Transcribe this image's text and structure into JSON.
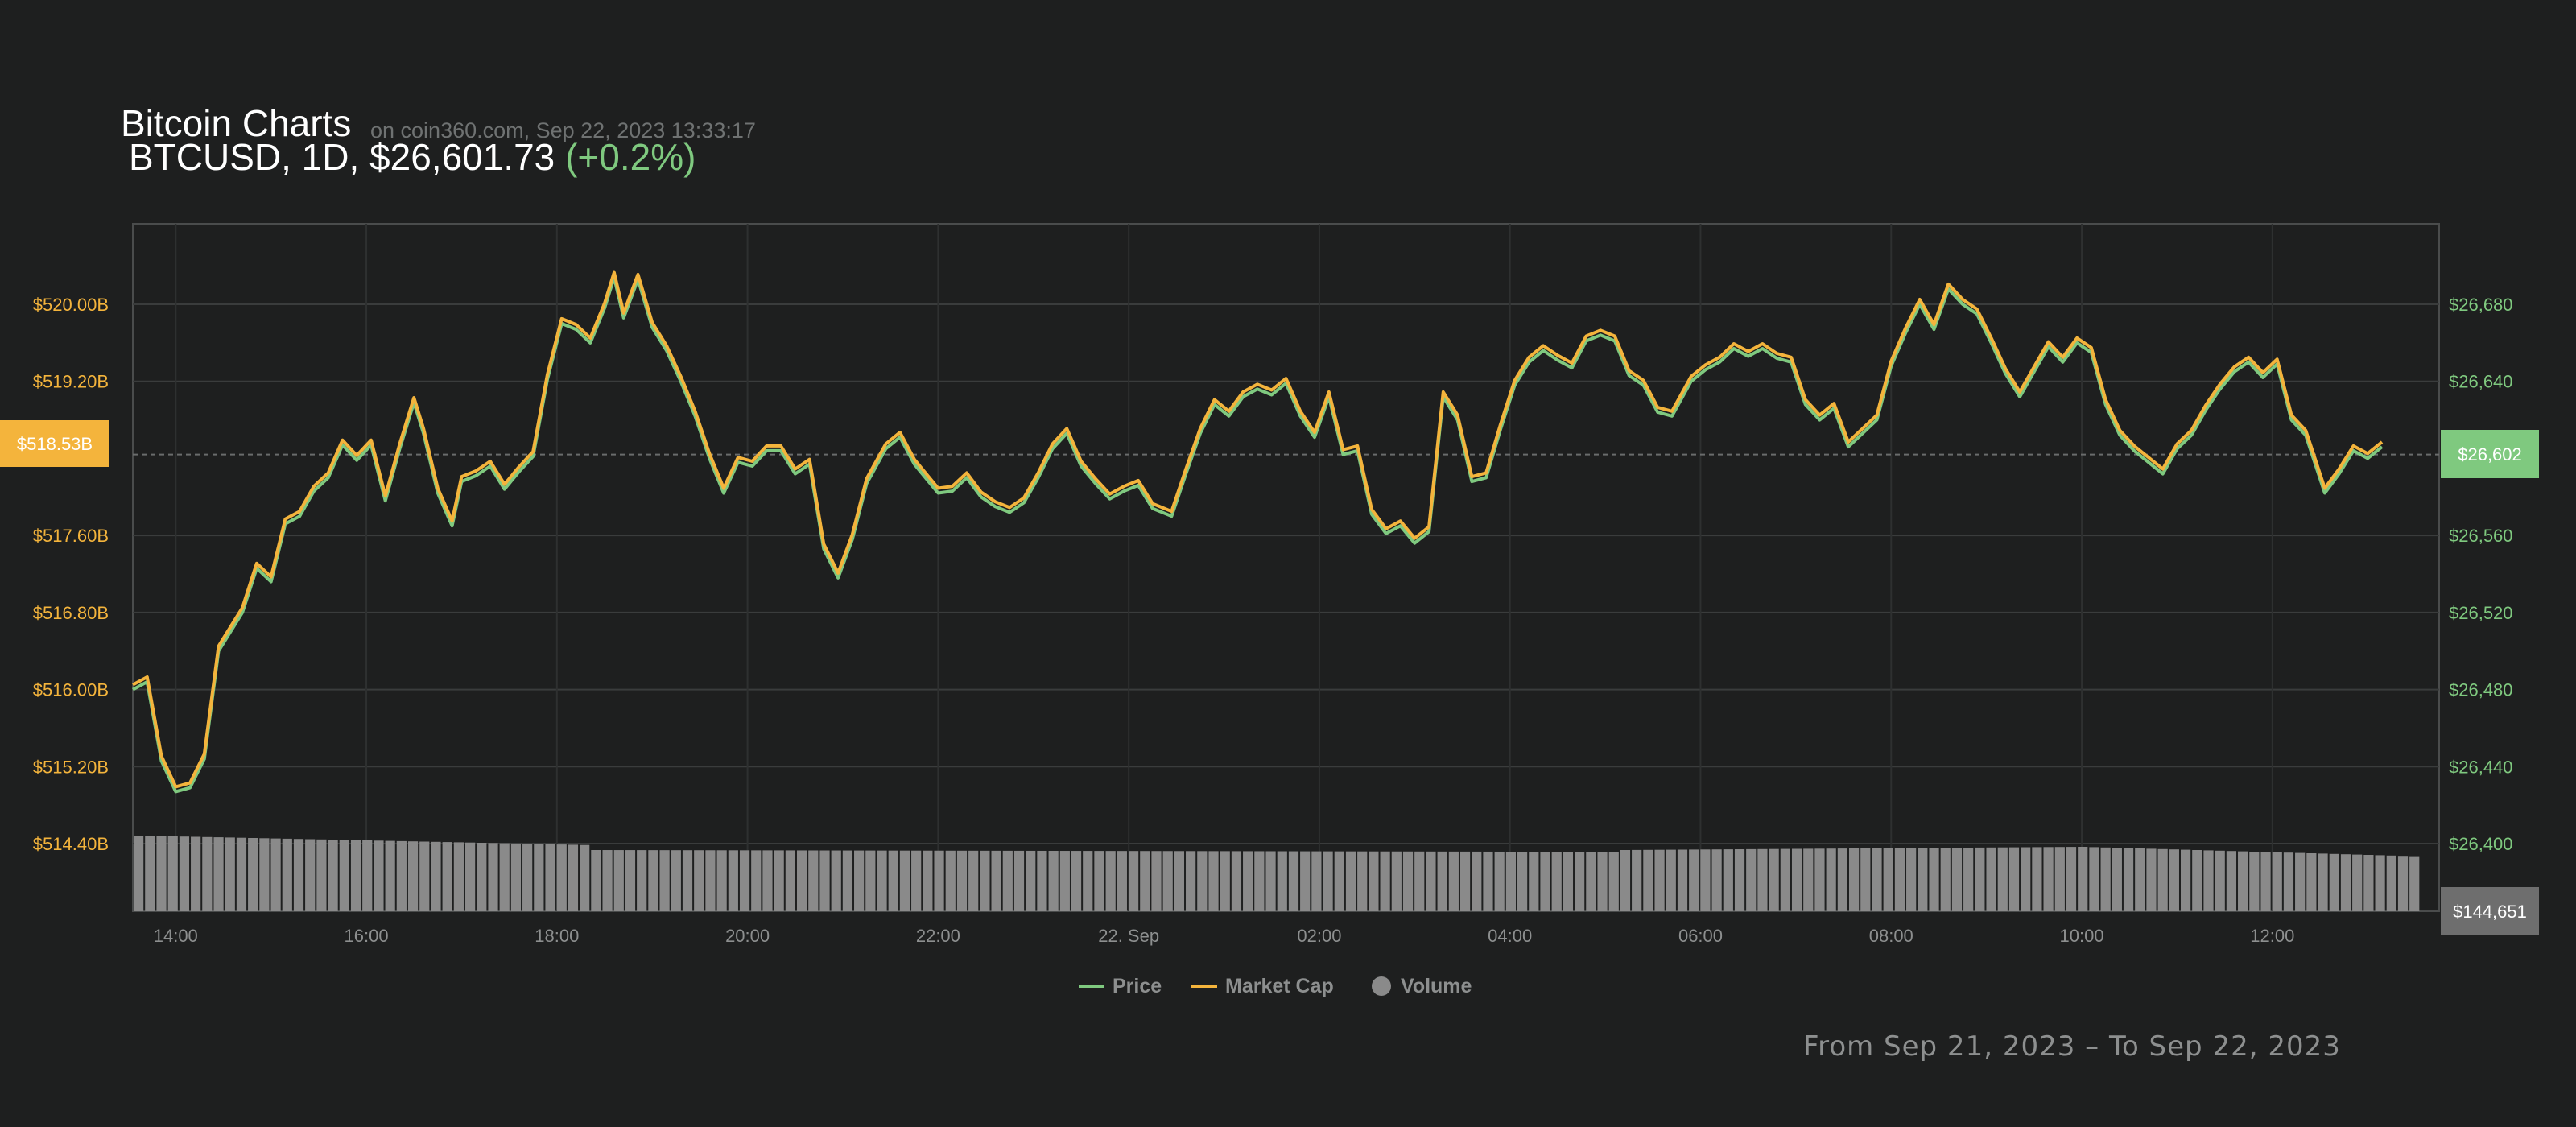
{
  "header": {
    "title": "Bitcoin Charts",
    "subtitle": "on coin360.com, Sep 22, 2023 13:33:17",
    "symbol_line": "BTCUSD, 1D, $26,601.73",
    "change": "(+0.2%)"
  },
  "footer": {
    "date_range": "From Sep 21, 2023 – To Sep 22, 2023"
  },
  "colors": {
    "background": "#1e1f1f",
    "price": "#7fc97f",
    "market_cap": "#f4b43c",
    "volume": "#8a8a8a",
    "grid": "#3a3c3c"
  },
  "chart_data": {
    "type": "line",
    "title": "BTCUSD, 1D",
    "x_tick_labels": [
      "14:00",
      "16:00",
      "18:00",
      "20:00",
      "22:00",
      "22. Sep",
      "02:00",
      "04:00",
      "06:00",
      "08:00",
      "10:00",
      "12:00"
    ],
    "x_ticks_hours": [
      14,
      16,
      18,
      20,
      22,
      24,
      26,
      28,
      30,
      32,
      34,
      36
    ],
    "x_range_hours": [
      13.55,
      37.75
    ],
    "y_left": {
      "label": "Market Cap",
      "ticks": [
        "$514.40B",
        "$515.20B",
        "$516.00B",
        "$516.80B",
        "$517.60B",
        "$518.53B",
        "$519.20B",
        "$520.00B"
      ],
      "range": [
        514.4,
        520.0
      ],
      "unit": "B USD"
    },
    "y_right": {
      "label": "Price",
      "ticks": [
        "$26,400",
        "$26,440",
        "$26,480",
        "$26,520",
        "$26,560",
        "$26,602",
        "$26,640",
        "$26,680"
      ],
      "range": [
        26400,
        26680
      ],
      "unit": "USD"
    },
    "current_market_cap_label": "$518.53B",
    "current_price_label": "$26,602",
    "current_volume_label": "$144,651",
    "legend": [
      {
        "name": "Price",
        "marker": "line"
      },
      {
        "name": "Market Cap",
        "marker": "line"
      },
      {
        "name": "Volume",
        "marker": "circle"
      }
    ],
    "legend_position": "bottom-center",
    "grid": true,
    "series": [
      {
        "name": "Price",
        "axis": "right",
        "points": [
          [
            13.55,
            26480
          ],
          [
            13.7,
            26484
          ],
          [
            13.85,
            26443
          ],
          [
            14.0,
            26427
          ],
          [
            14.15,
            26429
          ],
          [
            14.3,
            26444
          ],
          [
            14.45,
            26500
          ],
          [
            14.7,
            26520
          ],
          [
            14.85,
            26543
          ],
          [
            15.0,
            26536
          ],
          [
            15.15,
            26566
          ],
          [
            15.3,
            26570
          ],
          [
            15.45,
            26583
          ],
          [
            15.6,
            26590
          ],
          [
            15.75,
            26607
          ],
          [
            15.9,
            26599
          ],
          [
            16.05,
            26607
          ],
          [
            16.2,
            26578
          ],
          [
            16.35,
            26605
          ],
          [
            16.5,
            26629
          ],
          [
            16.6,
            26613
          ],
          [
            16.75,
            26582
          ],
          [
            16.9,
            26565
          ],
          [
            17.0,
            26588
          ],
          [
            17.15,
            26591
          ],
          [
            17.3,
            26596
          ],
          [
            17.45,
            26584
          ],
          [
            17.6,
            26593
          ],
          [
            17.75,
            26601
          ],
          [
            17.9,
            26641
          ],
          [
            18.05,
            26670
          ],
          [
            18.2,
            26667
          ],
          [
            18.35,
            26660
          ],
          [
            18.5,
            26678
          ],
          [
            18.6,
            26694
          ],
          [
            18.7,
            26673
          ],
          [
            18.85,
            26693
          ],
          [
            19.0,
            26668
          ],
          [
            19.15,
            26656
          ],
          [
            19.3,
            26640
          ],
          [
            19.45,
            26622
          ],
          [
            19.6,
            26600
          ],
          [
            19.75,
            26582
          ],
          [
            19.9,
            26598
          ],
          [
            20.05,
            26596
          ],
          [
            20.2,
            26604
          ],
          [
            20.35,
            26604
          ],
          [
            20.5,
            26592
          ],
          [
            20.65,
            26597
          ],
          [
            20.8,
            26553
          ],
          [
            20.95,
            26538
          ],
          [
            21.1,
            26558
          ],
          [
            21.25,
            26587
          ],
          [
            21.45,
            26605
          ],
          [
            21.6,
            26611
          ],
          [
            21.75,
            26597
          ],
          [
            21.9,
            26588
          ],
          [
            22.0,
            26582
          ],
          [
            22.15,
            26583
          ],
          [
            22.3,
            26590
          ],
          [
            22.45,
            26580
          ],
          [
            22.6,
            26575
          ],
          [
            22.75,
            26572
          ],
          [
            22.9,
            26577
          ],
          [
            23.05,
            26590
          ],
          [
            23.2,
            26605
          ],
          [
            23.35,
            26613
          ],
          [
            23.5,
            26596
          ],
          [
            23.65,
            26587
          ],
          [
            23.8,
            26579
          ],
          [
            23.95,
            26583
          ],
          [
            24.1,
            26586
          ],
          [
            24.25,
            26574
          ],
          [
            24.45,
            26570
          ],
          [
            24.6,
            26592
          ],
          [
            24.75,
            26613
          ],
          [
            24.9,
            26628
          ],
          [
            25.05,
            26622
          ],
          [
            25.2,
            26632
          ],
          [
            25.35,
            26636
          ],
          [
            25.5,
            26633
          ],
          [
            25.65,
            26639
          ],
          [
            25.8,
            26622
          ],
          [
            25.95,
            26611
          ],
          [
            26.1,
            26632
          ],
          [
            26.25,
            26602
          ],
          [
            26.4,
            26604
          ],
          [
            26.55,
            26571
          ],
          [
            26.7,
            26561
          ],
          [
            26.85,
            26565
          ],
          [
            27.0,
            26556
          ],
          [
            27.15,
            26562
          ],
          [
            27.3,
            26632
          ],
          [
            27.45,
            26620
          ],
          [
            27.6,
            26588
          ],
          [
            27.75,
            26590
          ],
          [
            27.9,
            26615
          ],
          [
            28.05,
            26638
          ],
          [
            28.2,
            26650
          ],
          [
            28.35,
            26656
          ],
          [
            28.5,
            26651
          ],
          [
            28.65,
            26647
          ],
          [
            28.8,
            26661
          ],
          [
            28.95,
            26664
          ],
          [
            29.1,
            26661
          ],
          [
            29.25,
            26643
          ],
          [
            29.4,
            26638
          ],
          [
            29.55,
            26624
          ],
          [
            29.7,
            26622
          ],
          [
            29.9,
            26640
          ],
          [
            30.05,
            26646
          ],
          [
            30.2,
            26650
          ],
          [
            30.35,
            26657
          ],
          [
            30.5,
            26653
          ],
          [
            30.65,
            26657
          ],
          [
            30.8,
            26652
          ],
          [
            30.95,
            26650
          ],
          [
            31.1,
            26628
          ],
          [
            31.25,
            26620
          ],
          [
            31.4,
            26626
          ],
          [
            31.55,
            26606
          ],
          [
            31.7,
            26613
          ],
          [
            31.85,
            26620
          ],
          [
            32.0,
            26648
          ],
          [
            32.15,
            26665
          ],
          [
            32.3,
            26680
          ],
          [
            32.45,
            26667
          ],
          [
            32.6,
            26688
          ],
          [
            32.75,
            26680
          ],
          [
            32.9,
            26675
          ],
          [
            33.05,
            26660
          ],
          [
            33.2,
            26644
          ],
          [
            33.35,
            26632
          ],
          [
            33.5,
            26645
          ],
          [
            33.65,
            26658
          ],
          [
            33.8,
            26650
          ],
          [
            33.95,
            26660
          ],
          [
            34.1,
            26655
          ],
          [
            34.25,
            26628
          ],
          [
            34.4,
            26612
          ],
          [
            34.55,
            26604
          ],
          [
            34.7,
            26598
          ],
          [
            34.85,
            26592
          ],
          [
            35.0,
            26605
          ],
          [
            35.15,
            26612
          ],
          [
            35.3,
            26625
          ],
          [
            35.45,
            26636
          ],
          [
            35.6,
            26645
          ],
          [
            35.75,
            26650
          ],
          [
            35.9,
            26642
          ],
          [
            36.05,
            26649
          ],
          [
            36.2,
            26620
          ],
          [
            36.35,
            26612
          ],
          [
            36.55,
            26582
          ],
          [
            36.7,
            26592
          ],
          [
            36.85,
            26604
          ],
          [
            37.0,
            26600
          ],
          [
            37.15,
            26606
          ]
        ]
      }
    ],
    "market_cap_offset_note": "",
    "volume_bars": {
      "name": "Volume",
      "values_approx": [
        144651
      ],
      "bar_count": 200
    }
  }
}
